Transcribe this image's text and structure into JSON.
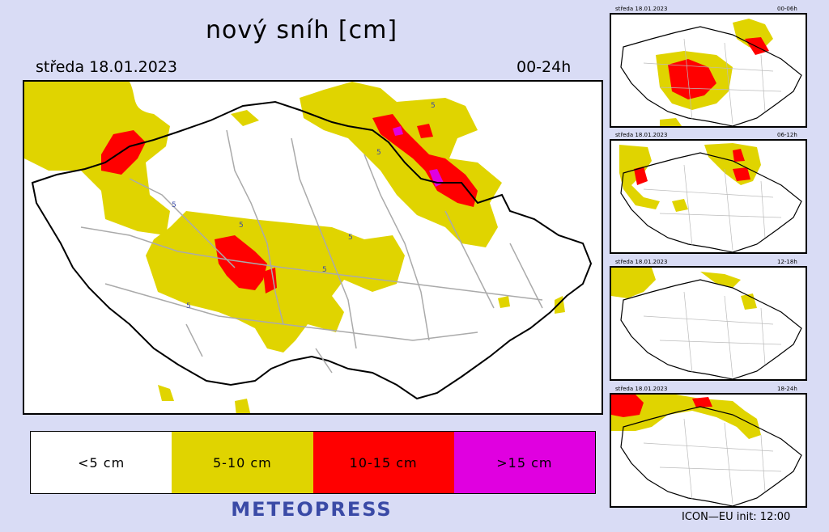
{
  "title": "nový sníh [cm]",
  "date": "středa 18.01.2023",
  "range": "00-24h",
  "legend": [
    {
      "label": "<5 cm",
      "color": "#ffffff"
    },
    {
      "label": "5-10 cm",
      "color": "#e0d400"
    },
    {
      "label": "10-15 cm",
      "color": "#ff0000"
    },
    {
      "label": ">15 cm",
      "color": "#e000e0"
    }
  ],
  "brand": "METEOPRESS",
  "model_info": "ICON—EU  init:  12:00",
  "contour_label": "5",
  "panels": [
    {
      "date": "středa 18.01.2023",
      "range": "00-06h"
    },
    {
      "date": "středa 18.01.2023",
      "range": "06-12h"
    },
    {
      "date": "středa 18.01.2023",
      "range": "12-18h"
    },
    {
      "date": "středa 18.01.2023",
      "range": "18-24h"
    }
  ]
}
